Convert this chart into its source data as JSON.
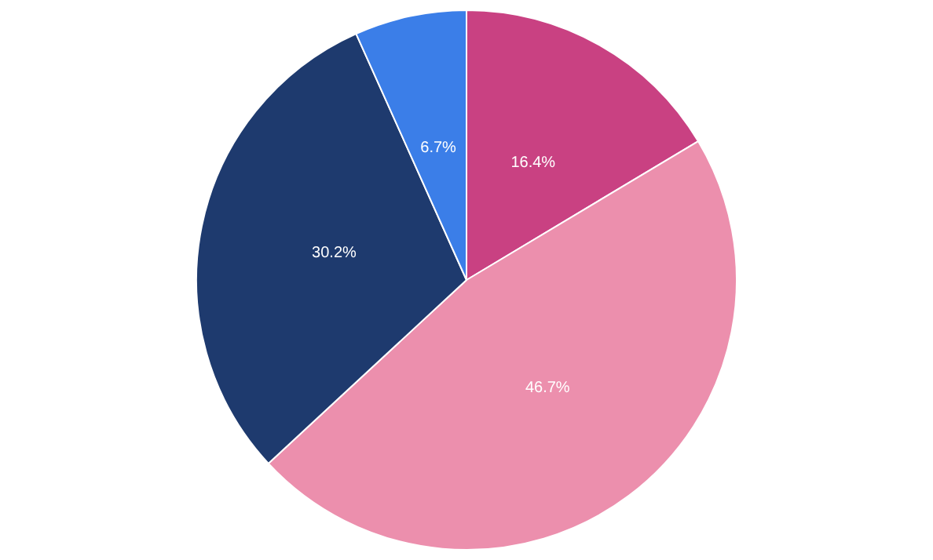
{
  "chart_data": {
    "type": "pie",
    "categories": [
      null,
      null,
      null,
      null
    ],
    "values": [
      16.4,
      46.7,
      30.2,
      6.7
    ],
    "colors": [
      "#c94182",
      "#ec8fad",
      "#1e3a6e",
      "#3b7ee8"
    ],
    "value_labels": [
      "16.4%",
      "46.7%",
      "30.2%",
      "6.7%"
    ],
    "legend": false
  }
}
